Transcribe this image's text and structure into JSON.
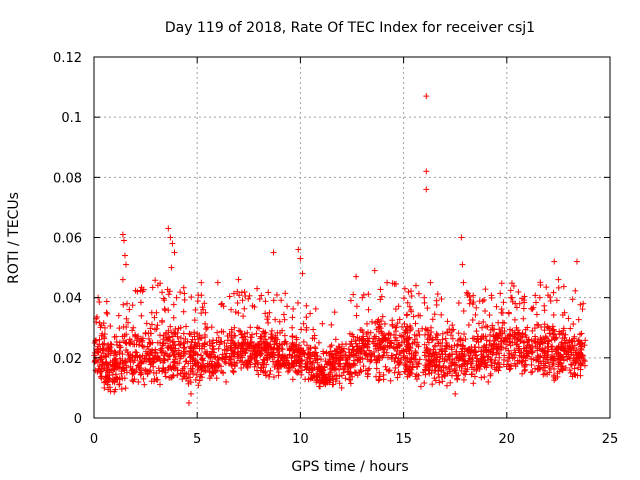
{
  "chart_data": {
    "type": "scatter",
    "title": "Day 119 of 2018, Rate Of TEC Index for receiver csj1",
    "xlabel": "GPS time / hours",
    "ylabel": "ROTI / TECUs",
    "xlim": [
      0,
      25
    ],
    "ylim": [
      0,
      0.12
    ],
    "xticks": [
      0,
      5,
      10,
      15,
      20,
      25
    ],
    "xtick_labels": [
      "0",
      "5",
      "10",
      "15",
      "20",
      "25"
    ],
    "yticks": [
      0,
      0.02,
      0.04,
      0.06,
      0.08,
      0.1,
      0.12
    ],
    "ytick_labels": [
      "0",
      "0.02",
      "0.04",
      "0.06",
      "0.08",
      "0.1",
      "0.12"
    ],
    "grid": true,
    "marker": "plus",
    "color": "#ff0000",
    "series": [
      {
        "name": "ROTI",
        "points": [
          [
            0.1,
            0.033
          ],
          [
            0.2,
            0.04
          ],
          [
            0.3,
            0.015
          ],
          [
            0.4,
            0.028
          ],
          [
            0.5,
            0.01
          ],
          [
            0.7,
            0.021
          ],
          [
            0.9,
            0.012
          ],
          [
            1.1,
            0.018
          ],
          [
            1.4,
            0.061
          ],
          [
            1.45,
            0.059
          ],
          [
            1.5,
            0.054
          ],
          [
            1.55,
            0.051
          ],
          [
            1.4,
            0.046
          ],
          [
            1.6,
            0.038
          ],
          [
            1.7,
            0.025
          ],
          [
            1.9,
            0.03
          ],
          [
            2.1,
            0.042
          ],
          [
            2.3,
            0.015
          ],
          [
            2.5,
            0.028
          ],
          [
            2.8,
            0.035
          ],
          [
            3.0,
            0.02
          ],
          [
            3.2,
            0.025
          ],
          [
            3.6,
            0.063
          ],
          [
            3.7,
            0.06
          ],
          [
            3.8,
            0.058
          ],
          [
            3.9,
            0.055
          ],
          [
            3.75,
            0.05
          ],
          [
            4.0,
            0.04
          ],
          [
            4.2,
            0.03
          ],
          [
            4.4,
            0.015
          ],
          [
            4.6,
            0.005
          ],
          [
            4.7,
            0.008
          ],
          [
            4.8,
            0.022
          ],
          [
            5.0,
            0.028
          ],
          [
            5.2,
            0.045
          ],
          [
            5.4,
            0.035
          ],
          [
            5.7,
            0.018
          ],
          [
            6.0,
            0.045
          ],
          [
            6.2,
            0.038
          ],
          [
            6.4,
            0.012
          ],
          [
            6.8,
            0.03
          ],
          [
            7.0,
            0.046
          ],
          [
            7.3,
            0.028
          ],
          [
            7.6,
            0.02
          ],
          [
            7.9,
            0.043
          ],
          [
            8.2,
            0.025
          ],
          [
            8.5,
            0.035
          ],
          [
            8.7,
            0.055
          ],
          [
            9.0,
            0.032
          ],
          [
            9.3,
            0.02
          ],
          [
            9.6,
            0.03
          ],
          [
            9.9,
            0.056
          ],
          [
            10.0,
            0.053
          ],
          [
            10.1,
            0.048
          ],
          [
            10.3,
            0.03
          ],
          [
            10.6,
            0.016
          ],
          [
            10.9,
            0.025
          ],
          [
            11.2,
            0.012
          ],
          [
            11.6,
            0.02
          ],
          [
            12.0,
            0.01
          ],
          [
            12.4,
            0.028
          ],
          [
            12.7,
            0.047
          ],
          [
            13.0,
            0.04
          ],
          [
            13.3,
            0.036
          ],
          [
            13.6,
            0.049
          ],
          [
            13.9,
            0.025
          ],
          [
            14.2,
            0.045
          ],
          [
            14.6,
            0.03
          ],
          [
            15.0,
            0.02
          ],
          [
            15.3,
            0.037
          ],
          [
            15.6,
            0.044
          ],
          [
            15.8,
            0.034
          ],
          [
            16.0,
            0.04
          ],
          [
            16.1,
            0.107
          ],
          [
            16.1,
            0.082
          ],
          [
            16.1,
            0.076
          ],
          [
            16.3,
            0.045
          ],
          [
            16.6,
            0.039
          ],
          [
            16.9,
            0.028
          ],
          [
            17.2,
            0.017
          ],
          [
            17.5,
            0.008
          ],
          [
            17.8,
            0.06
          ],
          [
            17.85,
            0.051
          ],
          [
            17.9,
            0.045
          ],
          [
            18.2,
            0.038
          ],
          [
            18.5,
            0.022
          ],
          [
            18.8,
            0.03
          ],
          [
            19.1,
            0.012
          ],
          [
            19.5,
            0.037
          ],
          [
            19.8,
            0.028
          ],
          [
            20.2,
            0.04
          ],
          [
            20.5,
            0.018
          ],
          [
            20.8,
            0.033
          ],
          [
            21.2,
            0.022
          ],
          [
            21.6,
            0.04
          ],
          [
            22.0,
            0.03
          ],
          [
            22.3,
            0.052
          ],
          [
            22.5,
            0.046
          ],
          [
            22.8,
            0.035
          ],
          [
            23.1,
            0.015
          ],
          [
            23.4,
            0.052
          ],
          [
            23.6,
            0.025
          ],
          [
            23.7,
            0.038
          ]
        ]
      }
    ],
    "dense_band": {
      "description": "dense background cloud of ROTI values",
      "x_range": [
        0,
        23.8
      ],
      "envelope": [
        [
          0,
          0.01,
          0.03
        ],
        [
          1,
          0.008,
          0.026
        ],
        [
          2,
          0.01,
          0.032
        ],
        [
          3,
          0.01,
          0.034
        ],
        [
          4,
          0.009,
          0.034
        ],
        [
          5,
          0.01,
          0.03
        ],
        [
          6,
          0.012,
          0.03
        ],
        [
          7,
          0.014,
          0.03
        ],
        [
          8,
          0.013,
          0.03
        ],
        [
          9,
          0.013,
          0.03
        ],
        [
          10,
          0.012,
          0.028
        ],
        [
          11,
          0.009,
          0.024
        ],
        [
          12,
          0.01,
          0.026
        ],
        [
          13,
          0.012,
          0.032
        ],
        [
          14,
          0.012,
          0.036
        ],
        [
          15,
          0.01,
          0.034
        ],
        [
          16,
          0.01,
          0.032
        ],
        [
          17,
          0.01,
          0.03
        ],
        [
          18,
          0.01,
          0.03
        ],
        [
          19,
          0.012,
          0.032
        ],
        [
          20,
          0.014,
          0.034
        ],
        [
          21,
          0.013,
          0.032
        ],
        [
          22,
          0.012,
          0.034
        ],
        [
          23,
          0.012,
          0.032
        ],
        [
          23.8,
          0.012,
          0.03
        ]
      ]
    }
  }
}
